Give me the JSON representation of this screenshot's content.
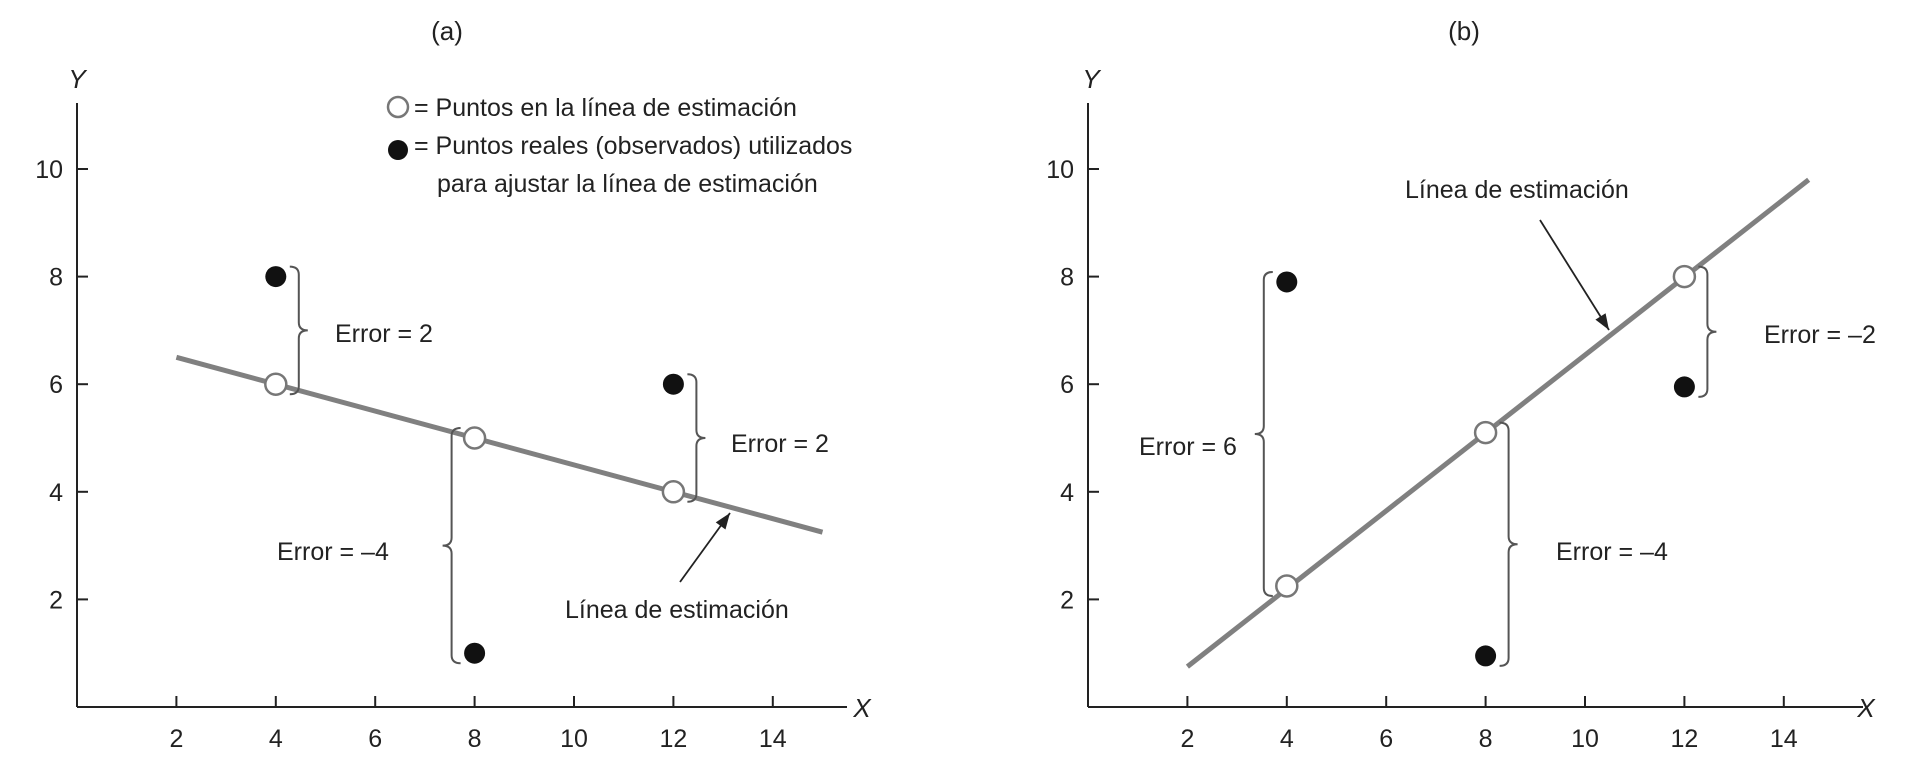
{
  "colors": {
    "axis": "#222222",
    "fit_line": "#808080",
    "observed": "#111111",
    "estimated_fill": "#ffffff",
    "estimated_stroke": "#777777",
    "brace": "#555555"
  },
  "legend": {
    "estimated_text": "= Puntos en la línea de estimación",
    "observed_line1": "= Puntos reales (observados) utilizados",
    "observed_line2": "para ajustar la línea de estimación"
  },
  "chart_data": [
    {
      "type": "scatter",
      "title": "(a)",
      "xlabel": "X",
      "ylabel": "Y",
      "xlim": [
        0,
        15.7
      ],
      "ylim": [
        0,
        11.3
      ],
      "x_ticks": [
        "2",
        "4",
        "6",
        "8",
        "10",
        "12",
        "14"
      ],
      "y_ticks": [
        "2",
        "4",
        "6",
        "8",
        "10"
      ],
      "estimation_line": {
        "label": "Línea de estimación",
        "from": [
          2,
          6.5
        ],
        "to": [
          15,
          3.25
        ]
      },
      "estimated_points": [
        [
          4,
          6
        ],
        [
          8,
          5
        ],
        [
          12,
          4
        ]
      ],
      "observed_points": [
        [
          4,
          8
        ],
        [
          8,
          1
        ],
        [
          12,
          6
        ]
      ],
      "errors": [
        {
          "label": "Error = 2",
          "x": 4,
          "y_from": 6,
          "y_to": 8,
          "side": "right"
        },
        {
          "label": "Error = –4",
          "x": 8,
          "y_from": 1,
          "y_to": 5,
          "side": "left"
        },
        {
          "label": "Error = 2",
          "x": 12,
          "y_from": 4,
          "y_to": 6,
          "side": "right"
        }
      ]
    },
    {
      "type": "scatter",
      "title": "(b)",
      "xlabel": "X",
      "ylabel": "Y",
      "xlim": [
        0,
        15.7
      ],
      "ylim": [
        0,
        11.3
      ],
      "x_ticks": [
        "2",
        "4",
        "6",
        "8",
        "10",
        "12",
        "14"
      ],
      "y_ticks": [
        "2",
        "4",
        "6",
        "8",
        "10"
      ],
      "estimation_line": {
        "label": "Línea de estimación",
        "from": [
          2,
          0.75
        ],
        "to": [
          14.5,
          9.8
        ]
      },
      "estimated_points": [
        [
          4,
          2.25
        ],
        [
          8,
          5.1
        ],
        [
          12,
          8
        ]
      ],
      "observed_points": [
        [
          4,
          7.9
        ],
        [
          8,
          0.95
        ],
        [
          12,
          5.95
        ]
      ],
      "errors": [
        {
          "label": "Error = 6",
          "x": 4,
          "y_from": 2.25,
          "y_to": 7.9,
          "side": "left"
        },
        {
          "label": "Error = –4",
          "x": 8,
          "y_from": 0.95,
          "y_to": 5.1,
          "side": "right"
        },
        {
          "label": "Error = –2",
          "x": 12,
          "y_from": 5.95,
          "y_to": 8,
          "side": "right"
        }
      ]
    }
  ]
}
